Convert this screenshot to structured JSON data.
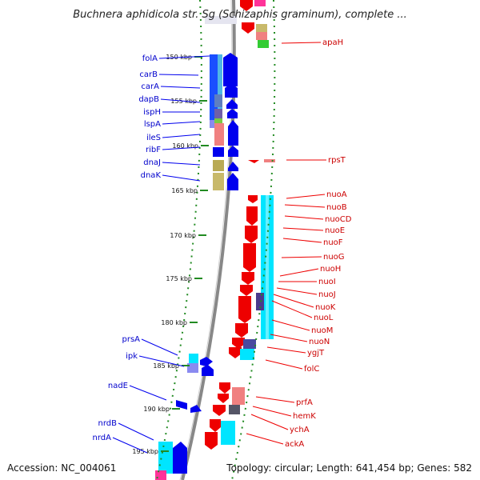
{
  "title": "Buchnera aphidicola str. Sg (Schizaphis graminum), complete ...",
  "footer": {
    "accession": "Accession: NC_004061",
    "summary": "Topology: circular; Length: 641,454 bp; Genes: 582"
  },
  "colors": {
    "forward": "#0000ee",
    "reverse": "#ee0000",
    "backbone": "#888888",
    "ticks": "#228b22"
  },
  "ticks": [
    "150 kbp",
    "155 kbp",
    "160 kbp",
    "165 kbp",
    "170 kbp",
    "175 kbp",
    "180 kbp",
    "185 kbp",
    "190 kbp",
    "195 kbp"
  ],
  "left_labels": [
    "folA",
    "carB",
    "carA",
    "dapB",
    "ispH",
    "lspA",
    "ileS",
    "ribF",
    "dnaJ",
    "dnaK",
    "prsA",
    "ipk",
    "nadE",
    "nrdB",
    "nrdA"
  ],
  "right_labels": [
    "apaH",
    "rpsT",
    "nuoA",
    "nuoB",
    "nuoCD",
    "nuoE",
    "nuoF",
    "nuoG",
    "nuoH",
    "nuoI",
    "nuoJ",
    "nuoK",
    "nuoL",
    "nuoM",
    "nuoN",
    "ygjT",
    "folC",
    "prfA",
    "hemK",
    "ychA",
    "ackA"
  ]
}
